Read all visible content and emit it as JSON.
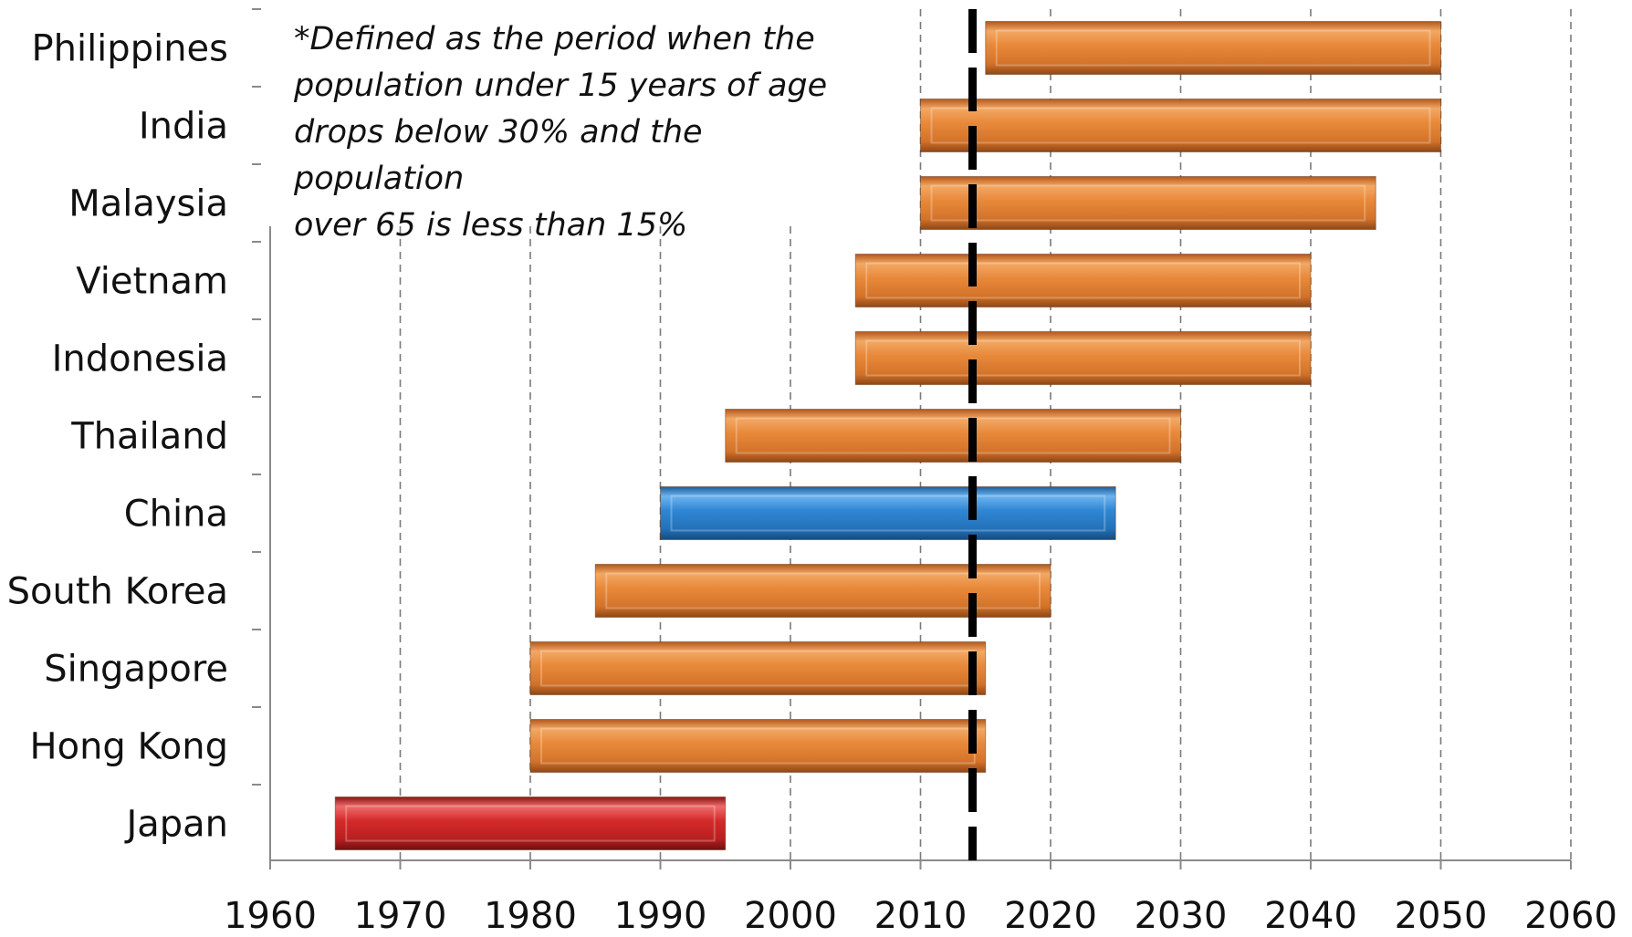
{
  "chart_data": {
    "type": "bar",
    "orientation": "horizontal",
    "subtype": "floating-range",
    "title": "",
    "xlabel": "",
    "ylabel": "",
    "xlim": [
      1960,
      2060
    ],
    "x_ticks": [
      1960,
      1970,
      1980,
      1990,
      2000,
      2010,
      2020,
      2030,
      2040,
      2050,
      2060
    ],
    "grid": "vertical dashed",
    "legend": "none",
    "annotation": "*Defined as the period when the\npopulation under 15 years of age\ndrops below 30% and the population\nover 65 is less than 15%",
    "reference_line": {
      "x": 2014,
      "style": "thick dashed black"
    },
    "categories": [
      "Philippines",
      "India",
      "Malaysia",
      "Vietnam",
      "Indonesia",
      "Thailand",
      "China",
      "South Korea",
      "Singapore",
      "Hong Kong",
      "Japan"
    ],
    "ranges": [
      {
        "category": "Philippines",
        "start": 2015,
        "end": 2050,
        "color": "#e8893a"
      },
      {
        "category": "India",
        "start": 2010,
        "end": 2050,
        "color": "#e8893a"
      },
      {
        "category": "Malaysia",
        "start": 2010,
        "end": 2045,
        "color": "#e8893a"
      },
      {
        "category": "Vietnam",
        "start": 2005,
        "end": 2040,
        "color": "#e8893a"
      },
      {
        "category": "Indonesia",
        "start": 2005,
        "end": 2040,
        "color": "#e8893a"
      },
      {
        "category": "Thailand",
        "start": 1995,
        "end": 2030,
        "color": "#e8893a"
      },
      {
        "category": "China",
        "start": 1990,
        "end": 2025,
        "color": "#2f86d4"
      },
      {
        "category": "South Korea",
        "start": 1985,
        "end": 2020,
        "color": "#e8893a"
      },
      {
        "category": "Singapore",
        "start": 1980,
        "end": 2015,
        "color": "#e8893a"
      },
      {
        "category": "Hong Kong",
        "start": 1980,
        "end": 2015,
        "color": "#e8893a"
      },
      {
        "category": "Japan",
        "start": 1965,
        "end": 1995,
        "color": "#d42a2a"
      }
    ]
  }
}
